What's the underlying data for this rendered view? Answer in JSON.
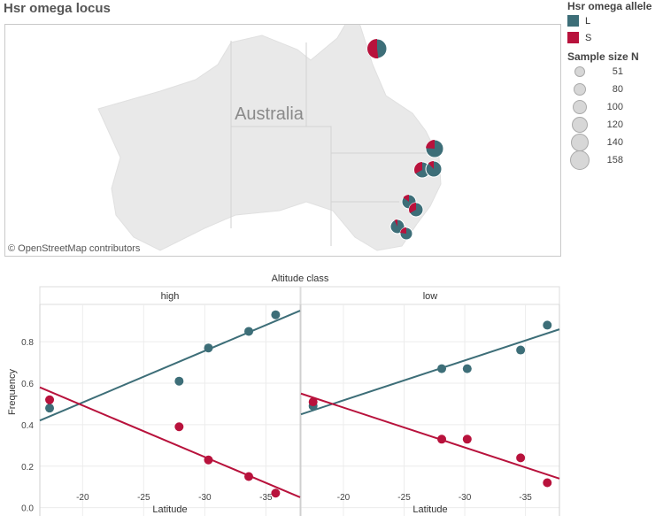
{
  "title": "Hsr omega locus",
  "map": {
    "country_label": "Australia",
    "attribution": "© OpenStreetMap contributors"
  },
  "legend": {
    "allele_title": "Hsr omega allele",
    "alleles": [
      {
        "label": "L",
        "color": "#3d6e78"
      },
      {
        "label": "S",
        "color": "#b8123c"
      }
    ],
    "size_title": "Sample size N",
    "sizes": [
      {
        "label": "51",
        "n": 51
      },
      {
        "label": "80",
        "n": 80
      },
      {
        "label": "100",
        "n": 100
      },
      {
        "label": "120",
        "n": 120
      },
      {
        "label": "140",
        "n": 140
      },
      {
        "label": "158",
        "n": 158
      }
    ]
  },
  "chart_data": {
    "type": "scatter",
    "column_header": "Altitude class",
    "xlabel": "Latitude",
    "ylabel": "Frequency",
    "xlim": [
      -16.5,
      -37.8
    ],
    "ylim": [
      -0.04,
      0.98
    ],
    "xticks": [
      -20,
      -25,
      -30,
      -35
    ],
    "xtick_labels": [
      "-20",
      "-25",
      "-30",
      "-35"
    ],
    "yticks": [
      0.0,
      0.2,
      0.4,
      0.6,
      0.8
    ],
    "ytick_labels": [
      "0.0",
      "0.2",
      "0.4",
      "0.6",
      "0.8"
    ],
    "grid": true,
    "panels": [
      {
        "name": "high",
        "series": [
          {
            "name": "L",
            "color": "#3d6e78",
            "x": [
              -17.3,
              -27.9,
              -30.3,
              -33.6,
              -35.8
            ],
            "y": [
              0.48,
              0.61,
              0.77,
              0.85,
              0.93
            ],
            "trend": [
              [
                -16.5,
                0.42
              ],
              [
                -37.8,
                0.95
              ]
            ]
          },
          {
            "name": "S",
            "color": "#b8123c",
            "x": [
              -17.3,
              -27.9,
              -30.3,
              -33.6,
              -35.8
            ],
            "y": [
              0.52,
              0.39,
              0.23,
              0.15,
              0.07
            ],
            "trend": [
              [
                -16.5,
                0.58
              ],
              [
                -37.8,
                0.05
              ]
            ]
          }
        ]
      },
      {
        "name": "low",
        "series": [
          {
            "name": "L",
            "color": "#3d6e78",
            "x": [
              -17.5,
              -28.1,
              -30.2,
              -34.6,
              -36.8
            ],
            "y": [
              0.49,
              0.67,
              0.67,
              0.76,
              0.88
            ],
            "trend": [
              [
                -16.5,
                0.45
              ],
              [
                -37.8,
                0.86
              ]
            ]
          },
          {
            "name": "S",
            "color": "#b8123c",
            "x": [
              -17.5,
              -28.1,
              -30.2,
              -34.6,
              -36.8
            ],
            "y": [
              0.51,
              0.33,
              0.33,
              0.24,
              0.12
            ],
            "trend": [
              [
                -16.5,
                0.55
              ],
              [
                -37.8,
                0.14
              ]
            ]
          }
        ]
      }
    ]
  }
}
